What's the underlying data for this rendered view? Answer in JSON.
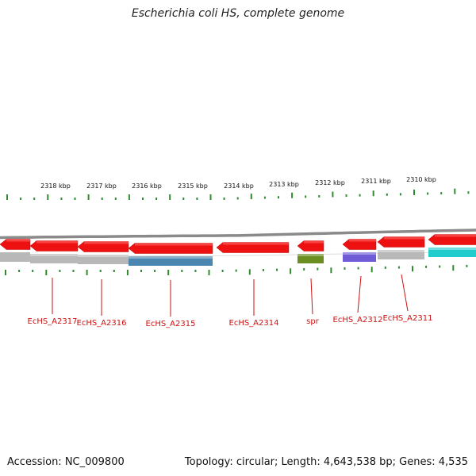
{
  "title": "Escherichia coli HS, complete genome",
  "footer": {
    "accession": "Accession: NC_009800",
    "summary": "Topology: circular; Length: 4,643,538 bp; Genes: 4,535"
  },
  "colors": {
    "gene_arrow": "#ee1111",
    "backbone": "#8a8a8a",
    "tick": "#2e8b2e",
    "label": "#cc1111",
    "leader": "#cc1111",
    "cds_gray": "#b8b8b8",
    "cds_blue": "#4a86b0",
    "cds_olive": "#6b8e23",
    "cds_purple": "#6f5cd6",
    "cds_cyan": "#22cccc"
  },
  "ruler": {
    "unit": "kbp",
    "ticks": [
      {
        "label": "2318 kbp"
      },
      {
        "label": "2317 kbp"
      },
      {
        "label": "2316 kbp"
      },
      {
        "label": "2315 kbp"
      },
      {
        "label": "2314 kbp"
      },
      {
        "label": "2313 kbp"
      },
      {
        "label": "2312 kbp"
      },
      {
        "label": "2311 kbp"
      },
      {
        "label": "2310 kbp"
      }
    ]
  },
  "genes": [
    {
      "name": "",
      "strand": "-"
    },
    {
      "name": "EcHS_A2317",
      "strand": "-",
      "cds": "gray"
    },
    {
      "name": "EcHS_A2316",
      "strand": "-",
      "cds": "gray"
    },
    {
      "name": "EcHS_A2315",
      "strand": "-",
      "cds": "blue"
    },
    {
      "name": "EcHS_A2314",
      "strand": "-",
      "cds": "none"
    },
    {
      "name": "spr",
      "strand": "-",
      "cds": "olive"
    },
    {
      "name": "EcHS_A2312",
      "strand": "-",
      "cds": "purple"
    },
    {
      "name": "EcHS_A2311",
      "strand": "-",
      "cds": "gray"
    },
    {
      "name": "",
      "strand": "-",
      "cds": "cyan"
    }
  ]
}
